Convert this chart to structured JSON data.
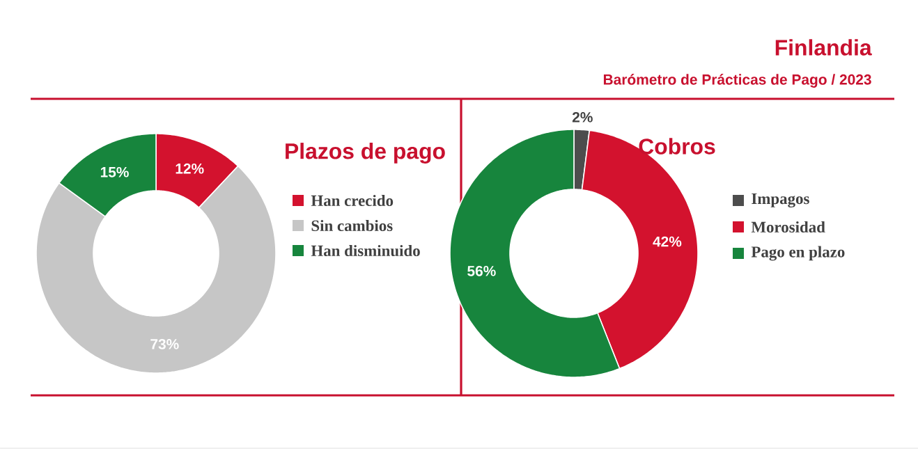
{
  "chart_data": [
    {
      "type": "other",
      "title": "Finlandia",
      "subtitle": "Barómetro de Prácticas de Pago / 2023"
    },
    {
      "type": "donut",
      "title": "Plazos de pago",
      "categories": [
        "Han crecido",
        "Sin cambios",
        "Han disminuido"
      ],
      "values": [
        12,
        73,
        15
      ],
      "value_labels": [
        "12%",
        "73%",
        "15%"
      ],
      "colors": [
        "#d3122e",
        "#c6c6c6",
        "#17853d"
      ],
      "legend": "right"
    },
    {
      "type": "donut",
      "title": "Cobros",
      "categories": [
        "Impagos",
        "Morosidad",
        "Pago en plazo"
      ],
      "values": [
        2,
        42,
        56
      ],
      "value_labels": [
        "2%",
        "42%",
        "56%"
      ],
      "colors": [
        "#4d4d4d",
        "#d3122e",
        "#17853d"
      ],
      "legend": "right"
    }
  ]
}
